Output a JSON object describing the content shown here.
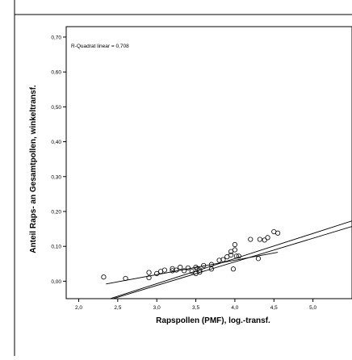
{
  "chart_data": {
    "type": "scatter",
    "xlabel": "Rapspollen (PMF), log.-transf.",
    "ylabel": "Anteil Raps- an Gesamtpollen, winkeltransf.",
    "annotation": "R-Quadrat linear = 0,708",
    "xlim": [
      1.84,
      5.5
    ],
    "ylim": [
      -0.05,
      0.73
    ],
    "x_ticks": [
      2.0,
      2.5,
      3.0,
      3.5,
      4.0,
      4.5,
      5.0
    ],
    "x_tick_labels": [
      "2,0",
      "2,5",
      "3,0",
      "3,5",
      "4,0",
      "4,5",
      "5,0"
    ],
    "y_ticks": [
      0.0,
      0.1,
      0.2,
      0.3,
      0.4,
      0.5,
      0.6,
      0.7
    ],
    "y_tick_labels": [
      "0,00",
      "0,10",
      "0,20",
      "0,30",
      "0,40",
      "0,50",
      "0,60",
      "0,70"
    ],
    "points": [
      {
        "x": 2.32,
        "y": 0.012
      },
      {
        "x": 2.6,
        "y": 0.008
      },
      {
        "x": 2.9,
        "y": 0.01
      },
      {
        "x": 2.9,
        "y": 0.025
      },
      {
        "x": 3.0,
        "y": 0.022
      },
      {
        "x": 3.05,
        "y": 0.028
      },
      {
        "x": 3.1,
        "y": 0.032
      },
      {
        "x": 3.2,
        "y": 0.03
      },
      {
        "x": 3.2,
        "y": 0.036
      },
      {
        "x": 3.25,
        "y": 0.032
      },
      {
        "x": 3.3,
        "y": 0.04
      },
      {
        "x": 3.35,
        "y": 0.03
      },
      {
        "x": 3.4,
        "y": 0.038
      },
      {
        "x": 3.45,
        "y": 0.028
      },
      {
        "x": 3.5,
        "y": 0.022
      },
      {
        "x": 3.5,
        "y": 0.04
      },
      {
        "x": 3.52,
        "y": 0.036
      },
      {
        "x": 3.55,
        "y": 0.032
      },
      {
        "x": 3.55,
        "y": 0.026
      },
      {
        "x": 3.6,
        "y": 0.045
      },
      {
        "x": 3.7,
        "y": 0.048
      },
      {
        "x": 3.7,
        "y": 0.035
      },
      {
        "x": 3.8,
        "y": 0.06
      },
      {
        "x": 3.85,
        "y": 0.062
      },
      {
        "x": 3.9,
        "y": 0.07
      },
      {
        "x": 3.95,
        "y": 0.075
      },
      {
        "x": 3.95,
        "y": 0.085
      },
      {
        "x": 3.98,
        "y": 0.035
      },
      {
        "x": 4.0,
        "y": 0.09
      },
      {
        "x": 4.0,
        "y": 0.105
      },
      {
        "x": 4.02,
        "y": 0.072
      },
      {
        "x": 4.05,
        "y": 0.072
      },
      {
        "x": 4.2,
        "y": 0.12
      },
      {
        "x": 4.3,
        "y": 0.065
      },
      {
        "x": 4.32,
        "y": 0.12
      },
      {
        "x": 4.38,
        "y": 0.118
      },
      {
        "x": 4.42,
        "y": 0.125
      },
      {
        "x": 4.5,
        "y": 0.142
      },
      {
        "x": 4.55,
        "y": 0.138
      }
    ],
    "fit_line": {
      "slope": 0.072,
      "intercept": -0.223
    },
    "confidence_band": {
      "upper": [
        {
          "x": 1.85,
          "y": -0.09
        },
        {
          "x": 5.5,
          "y": 0.157
        }
      ],
      "lower": [
        {
          "x": 2.35,
          "y": -0.008
        },
        {
          "x": 4.55,
          "y": 0.083
        }
      ]
    },
    "grid": false,
    "legend": "none"
  }
}
